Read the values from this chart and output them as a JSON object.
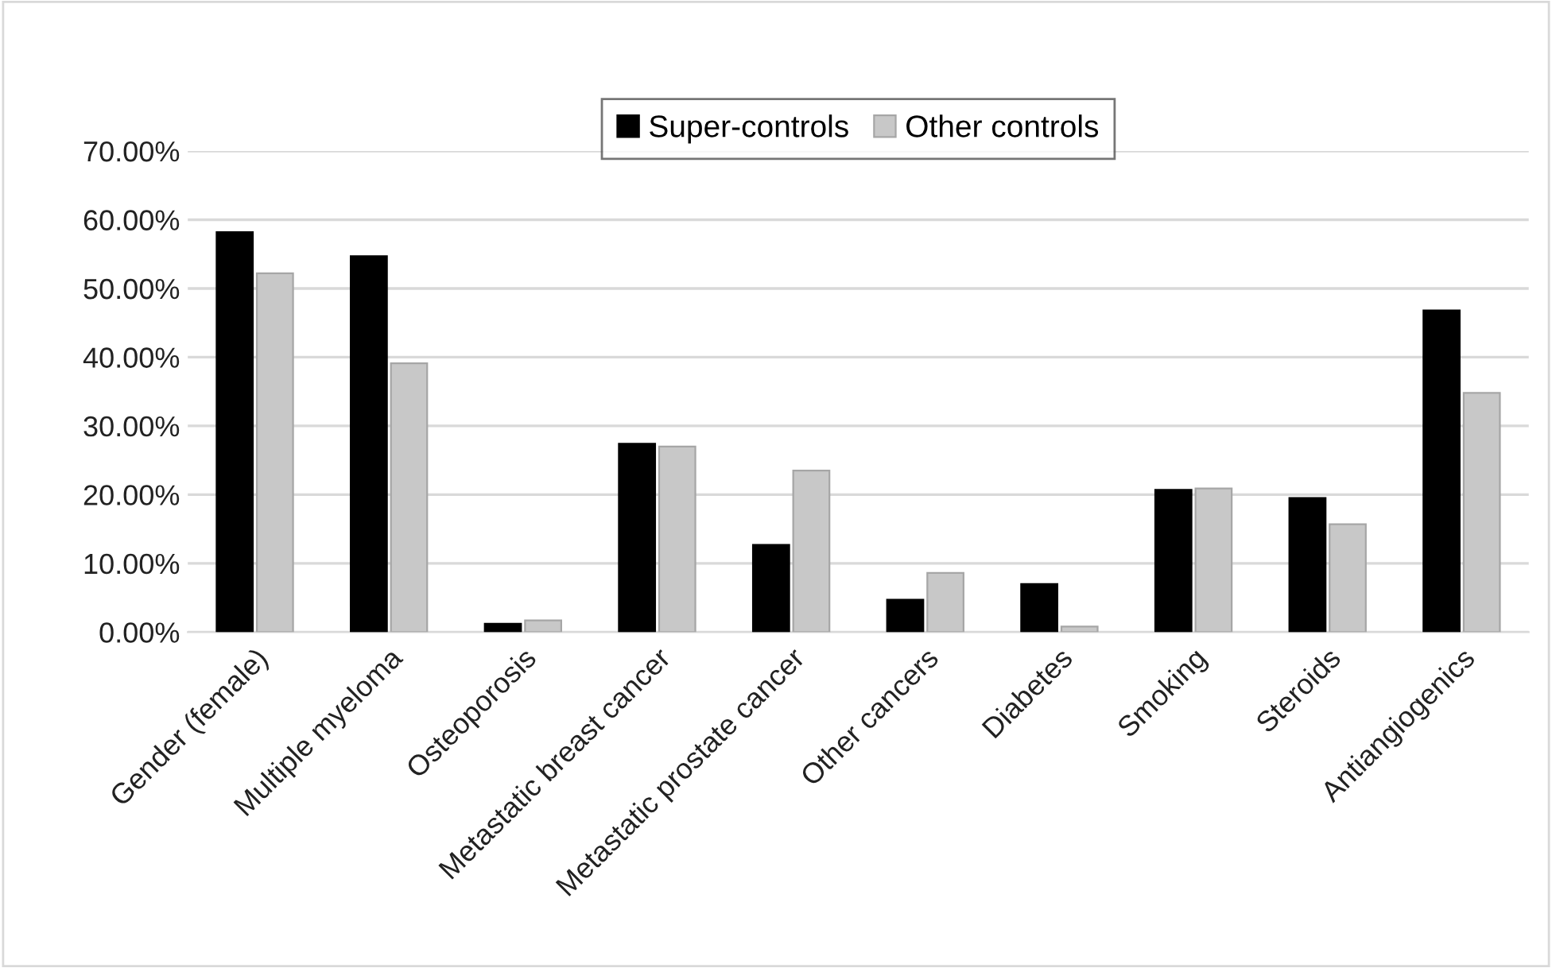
{
  "chart_data": {
    "type": "bar",
    "categories": [
      "Gender (female)",
      "Multiple myeloma",
      "Osteoporosis",
      "Metastatic breast cancer",
      "Metastatic prostate cancer",
      "Other cancers",
      "Diabetes",
      "Smoking",
      "Steroids",
      "Antiangiogenics"
    ],
    "series": [
      {
        "name": "Super-controls",
        "color": "#000000",
        "values": [
          58.2,
          54.7,
          1.2,
          27.4,
          12.7,
          4.7,
          7.0,
          20.7,
          19.5,
          46.8
        ]
      },
      {
        "name": "Other controls",
        "color": "#c8c8c8",
        "values": [
          52.2,
          39.1,
          1.7,
          27.0,
          23.5,
          8.6,
          0.8,
          20.9,
          15.7,
          34.8
        ]
      }
    ],
    "ylim": [
      0,
      70
    ],
    "yticks": [
      {
        "value": 0,
        "label": "0.00%"
      },
      {
        "value": 10,
        "label": "10.00%"
      },
      {
        "value": 20,
        "label": "20.00%"
      },
      {
        "value": 30,
        "label": "30.00%"
      },
      {
        "value": 40,
        "label": "40.00%"
      },
      {
        "value": 50,
        "label": "50.00%"
      },
      {
        "value": 60,
        "label": "60.00%"
      },
      {
        "value": 70,
        "label": "70.00%"
      }
    ],
    "grid": "y",
    "legend": "top"
  }
}
